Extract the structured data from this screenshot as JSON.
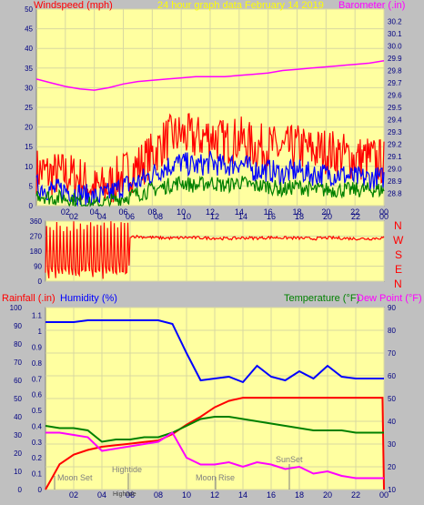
{
  "header": {
    "left_title": "Windspeed (mph)",
    "center_title": "24 hour graph data   February 14 2019",
    "right_title": "Barometer (.in)"
  },
  "labels": {
    "rainfall": "Rainfall (.in)",
    "humidity": "Humidity (%)",
    "temperature": "Temperature (°F)",
    "dewpoint": "Dew Point (°F)"
  },
  "colors": {
    "background": "#c0c0c0",
    "plot_bg": "#ffffa0",
    "grid": "#d8d8a0",
    "windspeed": "#ff0000",
    "wind_avg": "#0000ff",
    "wind_low": "#008000",
    "barometer": "#ff00ff",
    "direction": "#ff0000",
    "rain": "#ff0000",
    "humidity": "#0000ff",
    "temperature": "#008000",
    "dewpoint": "#ff00ff"
  },
  "direction_letters": [
    "N",
    "W",
    "S",
    "E",
    "N"
  ],
  "events": {
    "moon_set": "Moon Set",
    "hightide": "Hightide",
    "hightide_bottom": "Hightide",
    "moon_rise": "Moon Rise",
    "sunset": "SunSet"
  },
  "chart_data": [
    {
      "type": "line",
      "title": "24 hour graph data   February 14 2019",
      "ylabel": "Windspeed (mph)",
      "y2label": "Barometer (.in)",
      "x_ticks": [
        "02",
        "04",
        "06",
        "08",
        "10",
        "12",
        "14",
        "16",
        "18",
        "20",
        "22",
        "00"
      ],
      "xlim": [
        0,
        24
      ],
      "ylim": [
        0,
        50
      ],
      "y_ticks": [
        0,
        5,
        10,
        15,
        20,
        25,
        30,
        35,
        40,
        45,
        50
      ],
      "y2lim": [
        28.7,
        30.3
      ],
      "y2_ticks": [
        28.8,
        28.9,
        29.0,
        29.1,
        29.2,
        29.3,
        29.4,
        29.5,
        29.6,
        29.7,
        29.8,
        29.9,
        30.0,
        30.1,
        30.2
      ],
      "series": [
        {
          "name": "Windspeed (mph)",
          "role": "gust",
          "x": [
            0,
            1,
            2,
            3,
            4,
            5,
            6,
            7,
            8,
            9,
            10,
            11,
            12,
            13,
            14,
            15,
            16,
            17,
            18,
            19,
            20,
            21,
            22,
            23,
            24
          ],
          "y": [
            9,
            8,
            8,
            7,
            4,
            5,
            8,
            10,
            13,
            17,
            18,
            17,
            18,
            16,
            17,
            15,
            15,
            14,
            15,
            14,
            14,
            13,
            12,
            12,
            11
          ]
        },
        {
          "name": "Windspeed average",
          "role": "avg",
          "x": [
            0,
            1,
            2,
            3,
            4,
            5,
            6,
            7,
            8,
            9,
            10,
            11,
            12,
            13,
            14,
            15,
            16,
            17,
            18,
            19,
            20,
            21,
            22,
            23,
            24
          ],
          "y": [
            5,
            4,
            4,
            3,
            2,
            3,
            5,
            6,
            8,
            10,
            11,
            10,
            11,
            10,
            11,
            9,
            9,
            8,
            9,
            8,
            8,
            8,
            7,
            7,
            7
          ]
        },
        {
          "name": "Windspeed low",
          "role": "low",
          "x": [
            0,
            1,
            2,
            3,
            4,
            5,
            6,
            7,
            8,
            9,
            10,
            11,
            12,
            13,
            14,
            15,
            16,
            17,
            18,
            19,
            20,
            21,
            22,
            23,
            24
          ],
          "y": [
            3,
            2,
            2,
            1,
            0,
            1,
            2,
            3,
            4,
            5,
            6,
            5,
            6,
            5,
            6,
            5,
            5,
            4,
            5,
            4,
            4,
            4,
            4,
            4,
            4
          ]
        },
        {
          "name": "Barometer (.in)",
          "axis": "y2",
          "x": [
            0,
            1,
            2,
            3,
            4,
            5,
            6,
            7,
            8,
            9,
            10,
            11,
            12,
            13,
            14,
            15,
            16,
            17,
            18,
            19,
            20,
            21,
            22,
            23,
            24
          ],
          "y": [
            29.73,
            29.7,
            29.67,
            29.65,
            29.64,
            29.66,
            29.69,
            29.71,
            29.72,
            29.73,
            29.74,
            29.75,
            29.75,
            29.75,
            29.76,
            29.77,
            29.78,
            29.8,
            29.81,
            29.82,
            29.83,
            29.84,
            29.85,
            29.86,
            29.88
          ]
        }
      ]
    },
    {
      "type": "line",
      "ylabel": "Wind direction",
      "x_ticks": [
        "02",
        "04",
        "06",
        "08",
        "10",
        "12",
        "14",
        "16",
        "18",
        "20",
        "22",
        "00"
      ],
      "xlim": [
        0,
        24
      ],
      "ylim": [
        0,
        360
      ],
      "y_ticks": [
        0,
        90,
        180,
        270,
        360
      ],
      "series": [
        {
          "name": "Wind direction",
          "x": [
            0,
            0.5,
            1,
            1.5,
            2,
            2.5,
            3,
            3.5,
            4,
            4.5,
            5,
            5.5,
            6,
            7,
            8,
            9,
            10,
            11,
            12,
            13,
            14,
            15,
            16,
            17,
            18,
            19,
            20,
            21,
            22,
            23,
            24
          ],
          "y": [
            40,
            50,
            60,
            70,
            90,
            120,
            200,
            330,
            350,
            100,
            340,
            350,
            270,
            265,
            260,
            258,
            262,
            260,
            258,
            255,
            260,
            258,
            262,
            260,
            258,
            255,
            260,
            258,
            255,
            255,
            260
          ]
        }
      ]
    },
    {
      "type": "line",
      "x_ticks": [
        "02",
        "04",
        "06",
        "08",
        "10",
        "12",
        "14",
        "16",
        "18",
        "20",
        "22",
        "00"
      ],
      "xlim": [
        0,
        24
      ],
      "rain_ylim": [
        0,
        1.15
      ],
      "rain_y_ticks": [
        0,
        0.1,
        0.2,
        0.3,
        0.4,
        0.5,
        0.6,
        0.7,
        0.8,
        0.9,
        1.0,
        1.1
      ],
      "humidity_ylim": [
        0,
        100
      ],
      "humidity_y_ticks": [
        0,
        10,
        20,
        30,
        40,
        50,
        60,
        70,
        80,
        90,
        100
      ],
      "temp_ylim": [
        10,
        90
      ],
      "temp_y_ticks": [
        10,
        20,
        30,
        40,
        50,
        60,
        70,
        80,
        90
      ],
      "series": [
        {
          "name": "Rainfall (.in)",
          "axis": "rain",
          "x": [
            0,
            0.5,
            1,
            2,
            3,
            4,
            5,
            6,
            7,
            8,
            9,
            10,
            11,
            12,
            13,
            14,
            15,
            16,
            17,
            18,
            19,
            20,
            21,
            22,
            23,
            23.9,
            24
          ],
          "y": [
            0,
            0.08,
            0.16,
            0.22,
            0.25,
            0.27,
            0.28,
            0.29,
            0.3,
            0.31,
            0.35,
            0.41,
            0.46,
            0.52,
            0.56,
            0.58,
            0.58,
            0.58,
            0.58,
            0.58,
            0.58,
            0.58,
            0.58,
            0.58,
            0.58,
            0.58,
            0
          ]
        },
        {
          "name": "Humidity (%)",
          "axis": "humidity",
          "x": [
            0,
            1,
            2,
            3,
            4,
            5,
            6,
            7,
            8,
            9,
            10,
            11,
            12,
            13,
            14,
            15,
            16,
            17,
            18,
            19,
            20,
            21,
            22,
            23,
            24
          ],
          "y": [
            92,
            92,
            92,
            93,
            93,
            93,
            93,
            93,
            93,
            91,
            75,
            60,
            61,
            62,
            59,
            68,
            62,
            60,
            65,
            61,
            68,
            62,
            61,
            61,
            61
          ]
        },
        {
          "name": "Temperature (°F)",
          "axis": "temp",
          "x": [
            0,
            1,
            2,
            3,
            4,
            5,
            6,
            7,
            8,
            9,
            10,
            11,
            12,
            13,
            14,
            15,
            16,
            17,
            18,
            19,
            20,
            21,
            22,
            23,
            24
          ],
          "y": [
            38,
            37,
            37,
            36,
            31,
            32,
            32,
            33,
            33,
            35,
            38,
            41,
            42,
            42,
            41,
            40,
            39,
            38,
            37,
            36,
            36,
            36,
            35,
            35,
            35
          ]
        },
        {
          "name": "Dew Point (°F)",
          "axis": "temp",
          "x": [
            0,
            1,
            2,
            3,
            4,
            5,
            6,
            7,
            8,
            9,
            10,
            11,
            12,
            13,
            14,
            15,
            16,
            17,
            18,
            19,
            20,
            21,
            22,
            23,
            24
          ],
          "y": [
            35,
            35,
            34,
            33,
            27,
            28,
            29,
            30,
            31,
            35,
            24,
            21,
            21,
            22,
            20,
            22,
            21,
            19,
            20,
            17,
            18,
            16,
            15,
            15,
            15
          ]
        }
      ]
    }
  ]
}
